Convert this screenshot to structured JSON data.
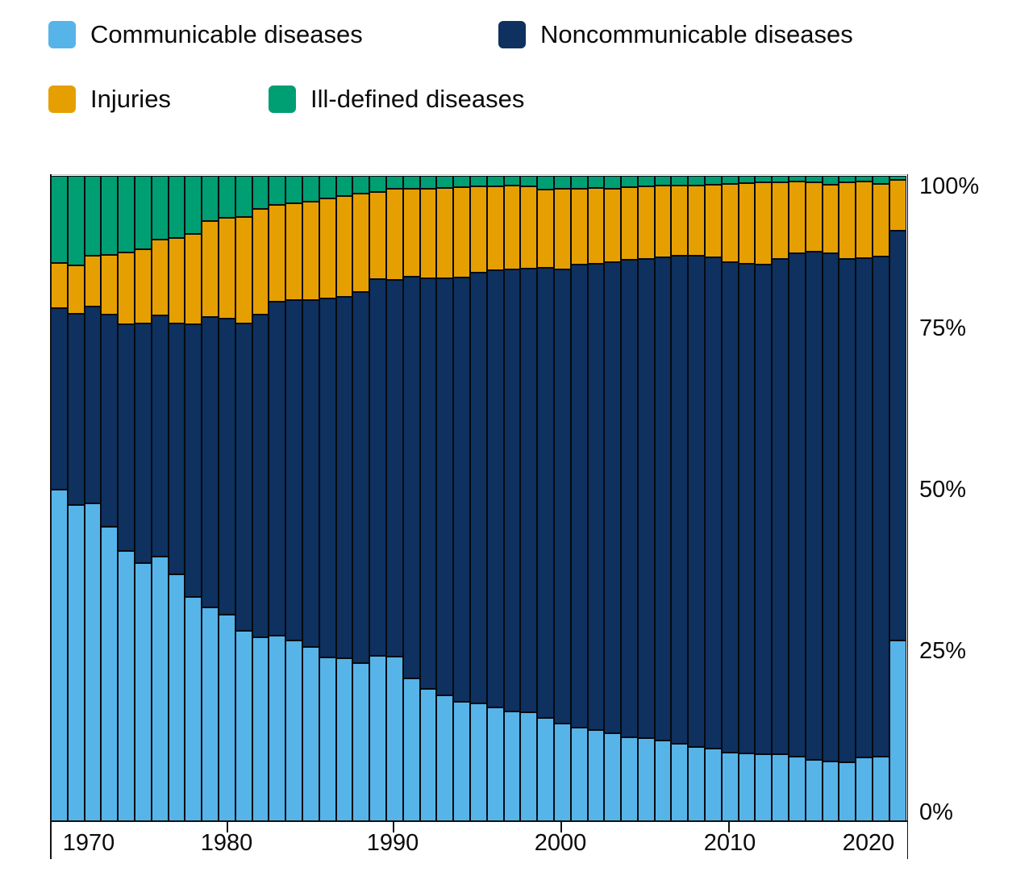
{
  "legend": {
    "items": [
      {
        "label": "Communicable diseases",
        "color": "#56B4E9"
      },
      {
        "label": "Noncommunicable diseases",
        "color": "#0E315F"
      },
      {
        "label": "Injuries",
        "color": "#E69F00"
      },
      {
        "label": "Ill-defined diseases",
        "color": "#009E73"
      }
    ]
  },
  "chart_data": {
    "type": "bar",
    "subtype": "stacked-100-percent",
    "x": [
      1970,
      1971,
      1972,
      1973,
      1974,
      1975,
      1976,
      1977,
      1978,
      1979,
      1980,
      1981,
      1982,
      1983,
      1984,
      1985,
      1986,
      1987,
      1988,
      1989,
      1990,
      1991,
      1992,
      1993,
      1994,
      1995,
      1996,
      1997,
      1998,
      1999,
      2000,
      2001,
      2002,
      2003,
      2004,
      2005,
      2006,
      2007,
      2008,
      2009,
      2010,
      2011,
      2012,
      2013,
      2014,
      2015,
      2016,
      2017,
      2018,
      2019,
      2020
    ],
    "series": [
      {
        "name": "Communicable diseases",
        "color": "#56B4E9",
        "values": [
          51.3,
          49.0,
          49.2,
          45.6,
          41.8,
          39.9,
          41.0,
          38.2,
          34.7,
          33.1,
          31.9,
          29.5,
          28.5,
          28.7,
          28.0,
          26.9,
          25.3,
          25.2,
          24.4,
          25.6,
          25.4,
          22.1,
          20.5,
          19.5,
          18.5,
          18.2,
          17.6,
          16.9,
          16.8,
          15.9,
          15.1,
          14.5,
          14.1,
          13.6,
          13.0,
          12.8,
          12.4,
          11.9,
          11.4,
          11.2,
          10.6,
          10.4,
          10.3,
          10.3,
          10.0,
          9.4,
          9.2,
          9.1,
          9.8,
          10.0,
          27.9
        ]
      },
      {
        "name": "Noncommunicable diseases",
        "color": "#0E315F",
        "values": [
          28.1,
          29.6,
          30.5,
          32.8,
          35.1,
          37.2,
          37.3,
          38.9,
          42.2,
          45.0,
          45.9,
          47.6,
          49.9,
          51.8,
          52.7,
          53.8,
          55.6,
          56.0,
          57.6,
          58.4,
          58.4,
          62.2,
          63.6,
          64.6,
          65.7,
          66.8,
          67.7,
          68.6,
          68.8,
          69.8,
          70.3,
          71.7,
          72.2,
          73.0,
          73.9,
          74.3,
          74.9,
          75.7,
          76.2,
          76.1,
          76.0,
          75.9,
          75.9,
          76.8,
          78.0,
          78.8,
          78.8,
          78.0,
          77.4,
          77.5,
          63.5
        ]
      },
      {
        "name": "Injuries",
        "color": "#E69F00",
        "values": [
          7.0,
          7.5,
          7.9,
          9.3,
          11.2,
          11.5,
          11.8,
          13.2,
          14.1,
          14.9,
          15.6,
          16.5,
          16.4,
          15.0,
          15.0,
          15.2,
          15.5,
          15.6,
          15.2,
          13.5,
          14.2,
          13.6,
          13.8,
          14.0,
          14.0,
          13.3,
          13.0,
          12.9,
          12.7,
          12.1,
          12.6,
          11.8,
          11.8,
          11.3,
          11.3,
          11.2,
          11.1,
          10.9,
          10.9,
          11.3,
          12.1,
          12.5,
          12.7,
          11.8,
          11.1,
          10.8,
          10.6,
          11.8,
          11.9,
          11.2,
          7.9
        ]
      },
      {
        "name": "Ill-defined diseases",
        "color": "#009E73",
        "values": [
          13.6,
          13.9,
          12.4,
          12.3,
          11.9,
          11.4,
          9.9,
          9.7,
          9.0,
          7.0,
          6.6,
          6.4,
          5.2,
          4.5,
          4.3,
          4.1,
          3.6,
          3.2,
          2.8,
          2.5,
          2.0,
          2.1,
          2.1,
          1.9,
          1.8,
          1.7,
          1.7,
          1.6,
          1.7,
          2.2,
          2.0,
          2.0,
          1.9,
          2.1,
          1.8,
          1.7,
          1.6,
          1.5,
          1.5,
          1.4,
          1.3,
          1.2,
          1.1,
          1.1,
          0.9,
          1.0,
          1.4,
          1.1,
          0.9,
          1.3,
          0.7
        ]
      }
    ],
    "title": "",
    "xlabel": "",
    "ylabel": "",
    "ylim": [
      0,
      100
    ],
    "grid": false,
    "legend_position": "top-left",
    "y_axis": {
      "labels": [
        {
          "text": "0%",
          "value": 0
        },
        {
          "text": "25%",
          "value": 25
        },
        {
          "text": "50%",
          "value": 50
        },
        {
          "text": "75%",
          "value": 75
        },
        {
          "text": "100%",
          "value": 100
        }
      ]
    },
    "x_axis": {
      "tick_x": [
        281,
        487,
        695,
        903
      ],
      "labels": [
        {
          "text": "1970",
          "x": 110
        },
        {
          "text": "1980",
          "x": 281
        },
        {
          "text": "1990",
          "x": 487
        },
        {
          "text": "2000",
          "x": 695
        },
        {
          "text": "2010",
          "x": 905
        },
        {
          "text": "2020",
          "x": 1077
        }
      ]
    }
  }
}
